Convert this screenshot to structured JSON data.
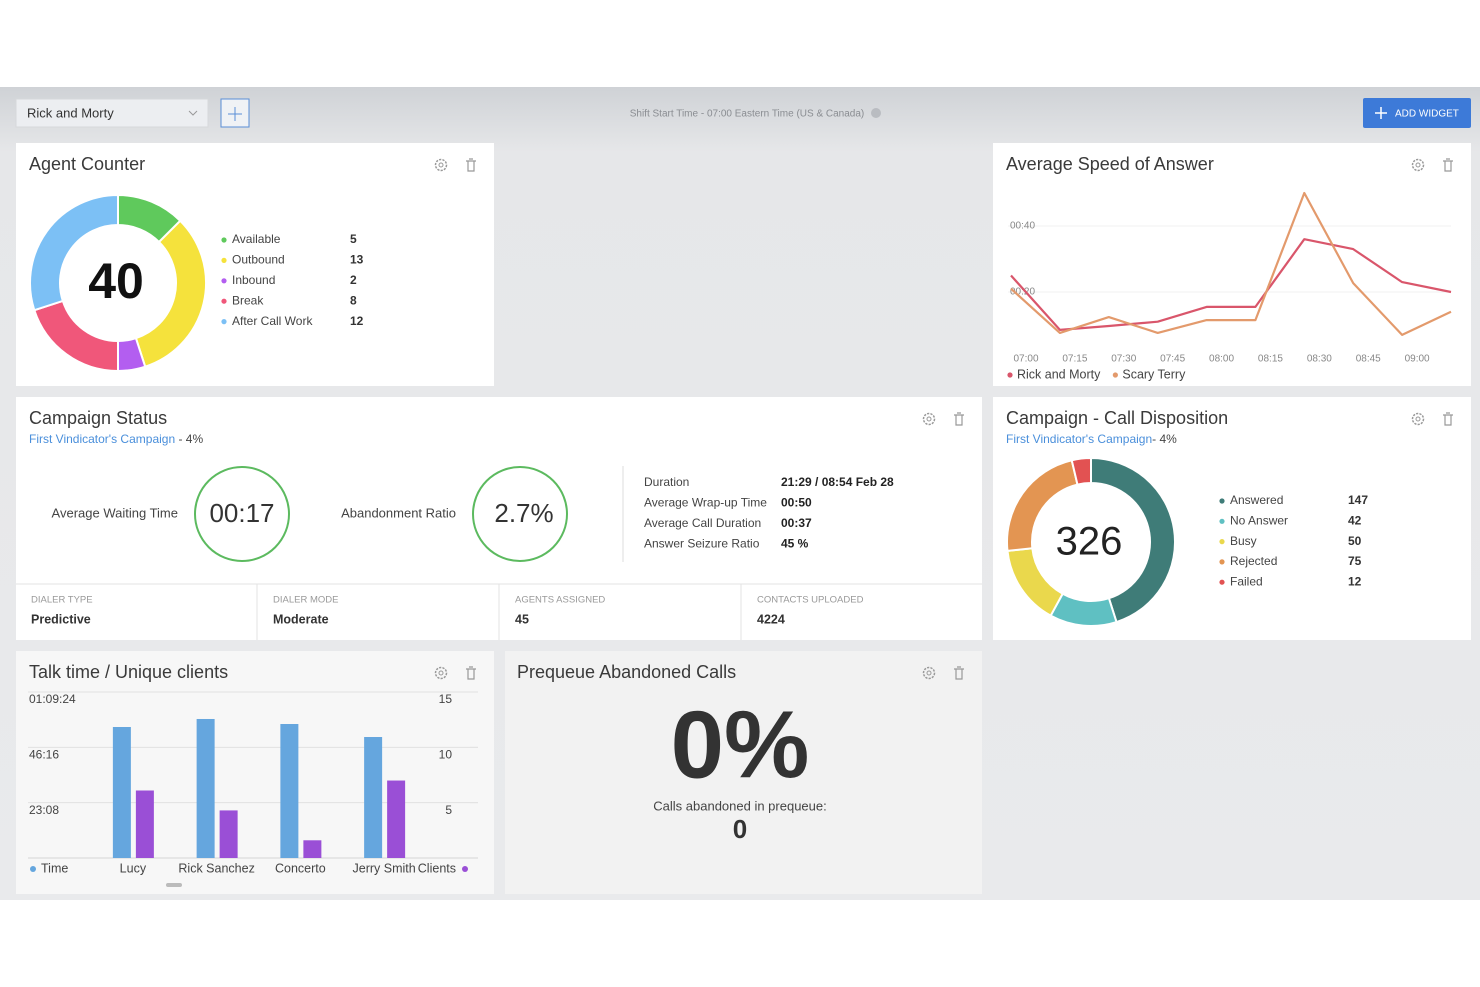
{
  "toolbar": {
    "selector": "Rick and Morty",
    "shift_info": "Shift Start Time - 07:00 Eastern Time (US & Canada)",
    "add_button": "ADD WIDGET"
  },
  "chart_data": [
    {
      "type": "donut",
      "title": "Agent Counter",
      "total": 40,
      "categories": [
        "Available",
        "Outbound",
        "Inbound",
        "Break",
        "After Call Work"
      ],
      "values": [
        5,
        13,
        2,
        8,
        12
      ],
      "colors": [
        "#5fc95c",
        "#f5e23c",
        "#b35ef0",
        "#f0577a",
        "#7cc0f5"
      ]
    },
    {
      "type": "line",
      "title": "Average Speed of Answer",
      "categories": [
        "07:00",
        "07:15",
        "07:30",
        "07:45",
        "08:00",
        "08:15",
        "08:30",
        "08:45",
        "09:00",
        null
      ],
      "series": [
        {
          "name": "Rick and Morty",
          "color": "#d9566b",
          "values": [
            25,
            8.5,
            9.7,
            11,
            15.5,
            15.5,
            36,
            33,
            23,
            20
          ]
        },
        {
          "name": "Scary Terry",
          "color": "#e39a6c",
          "values": [
            21,
            7.6,
            12.4,
            7.6,
            11.5,
            11.5,
            50,
            22.7,
            7,
            14
          ]
        }
      ],
      "ylim": [
        0,
        52
      ],
      "yticks": [
        {
          "value": 20,
          "label": "00:20"
        },
        {
          "value": 40,
          "label": "00:40"
        }
      ],
      "grid": true,
      "legend": "bottom-left"
    },
    {
      "type": "donut",
      "title": "Campaign - Call Disposition",
      "subtitle_link": "First Vindicator's Campaign",
      "subtitle_suffix": "- 4%",
      "total": 326,
      "categories": [
        "Answered",
        "No Answer",
        "Busy",
        "Rejected",
        "Failed"
      ],
      "values": [
        147,
        42,
        50,
        75,
        12
      ],
      "colors": [
        "#3f7c78",
        "#5fc0c2",
        "#ead84c",
        "#e39552",
        "#e25252"
      ]
    },
    {
      "type": "bar",
      "title": "Talk time / Unique clients",
      "categories": [
        "Lucy",
        "Rick Sanchez",
        "Concerto",
        "Jerry Smith"
      ],
      "series": [
        {
          "name": "Time",
          "color": "#65a6de",
          "values": [
            3286,
            3487,
            3361,
            3035
          ]
        },
        {
          "name": "Clients",
          "color": "#9a4fd6",
          "axis": "y2",
          "values": [
            6.1,
            4.3,
            1.6,
            7.0
          ]
        }
      ],
      "ylim": [
        0,
        4164
      ],
      "yticks": [
        {
          "value": 1388,
          "label": "23:08"
        },
        {
          "value": 2776,
          "label": "46:16"
        },
        {
          "value": 4164,
          "label": "01:09:24"
        }
      ],
      "y2lim": [
        0,
        15
      ],
      "y2ticks": [
        5,
        10,
        15
      ],
      "grid": true
    }
  ],
  "campaign_status": {
    "title": "Campaign Status",
    "subtitle_link": "First Vindicator's Campaign",
    "subtitle_suffix": " - 4%",
    "metrics": [
      {
        "label": "Average Waiting Time",
        "value": "00:17"
      },
      {
        "label": "Abandonment Ratio",
        "value": "2.7%"
      }
    ],
    "details": [
      {
        "label": "Duration",
        "value": "21:29 / 08:54 Feb 28"
      },
      {
        "label": "Average Wrap-up Time",
        "value": "00:50"
      },
      {
        "label": "Average Call Duration",
        "value": "00:37"
      },
      {
        "label": "Answer Seizure Ratio",
        "value": "45 %"
      }
    ],
    "footer": [
      {
        "label": "DIALER TYPE",
        "value": "Predictive"
      },
      {
        "label": "DIALER MODE",
        "value": "Moderate"
      },
      {
        "label": "AGENTS ASSIGNED",
        "value": 45
      },
      {
        "label": "CONTACTS UPLOADED",
        "value": 4224
      }
    ]
  },
  "prequeue": {
    "title": "Prequeue Abandoned Calls",
    "percent": "0%",
    "caption": "Calls abandoned in prequeue:",
    "count": 0
  }
}
